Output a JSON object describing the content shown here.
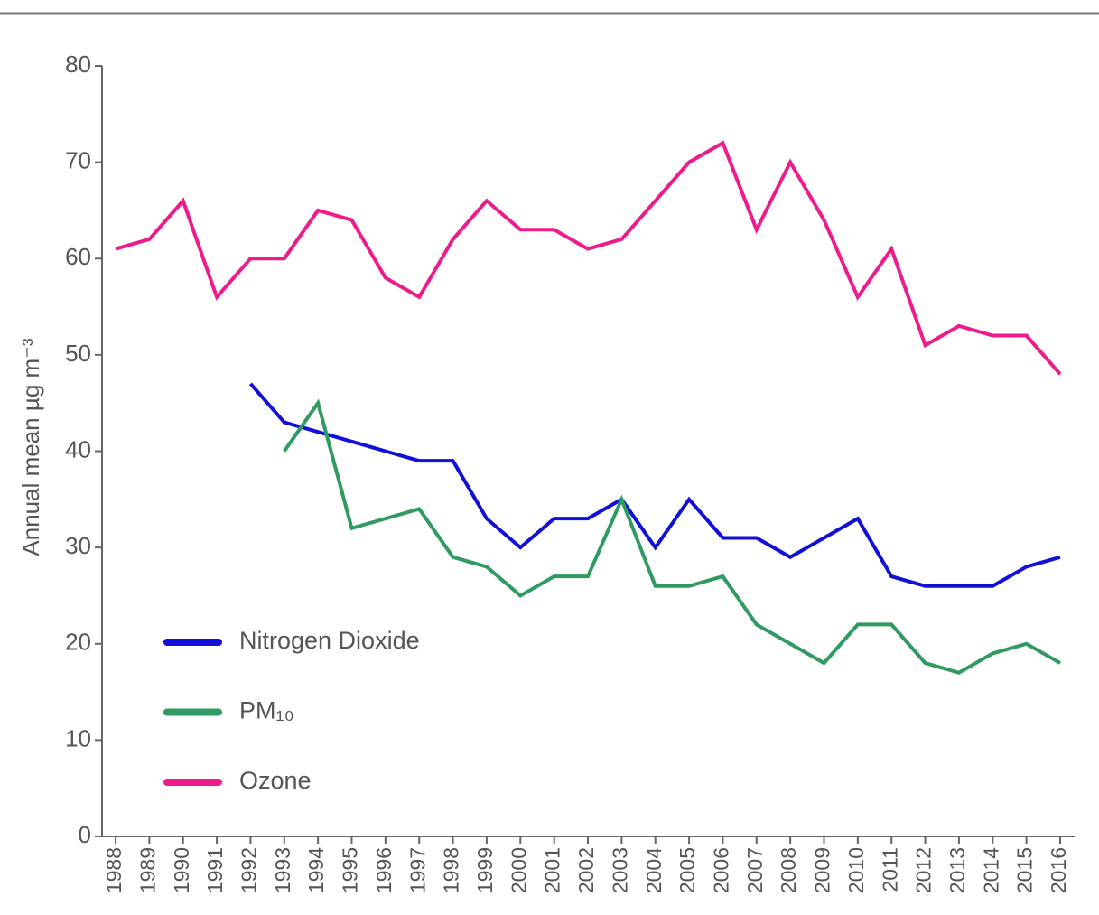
{
  "chart_data": {
    "type": "line",
    "y_label": "Annual mean µg m⁻³",
    "categories": [
      "1988",
      "1989",
      "1990",
      "1991",
      "1992",
      "1993",
      "1994",
      "1995",
      "1996",
      "1997",
      "1998",
      "1999",
      "2000",
      "2001",
      "2002",
      "2003",
      "2004",
      "2005",
      "2006",
      "2007",
      "2008",
      "2009",
      "2010",
      "2011",
      "2012",
      "2013",
      "2014",
      "2015",
      "2016"
    ],
    "series": [
      {
        "name": "Nitrogen Dioxide",
        "color": "#1010d8",
        "values": [
          null,
          null,
          null,
          null,
          47,
          43,
          42,
          41,
          40,
          39,
          39,
          33,
          30,
          33,
          33,
          35,
          30,
          35,
          31,
          31,
          29,
          31,
          33,
          27,
          26,
          26,
          26,
          28,
          29
        ]
      },
      {
        "name": "PM₁₀",
        "color": "#2f9a62",
        "values": [
          null,
          null,
          null,
          null,
          null,
          40,
          45,
          32,
          33,
          34,
          29,
          28,
          25,
          27,
          27,
          35,
          26,
          26,
          27,
          22,
          20,
          18,
          22,
          22,
          18,
          17,
          19,
          20,
          18
        ]
      },
      {
        "name": "Ozone",
        "color": "#ee1b8c",
        "values": [
          61,
          62,
          66,
          56,
          60,
          60,
          65,
          64,
          58,
          56,
          62,
          66,
          63,
          63,
          61,
          62,
          66,
          70,
          72,
          63,
          70,
          64,
          56,
          61,
          51,
          53,
          52,
          52,
          48
        ]
      }
    ],
    "ylim": [
      0,
      80
    ],
    "yticks": [
      0,
      10,
      20,
      30,
      40,
      50,
      60,
      70,
      80
    ],
    "grid": false,
    "legend": "lower left"
  }
}
